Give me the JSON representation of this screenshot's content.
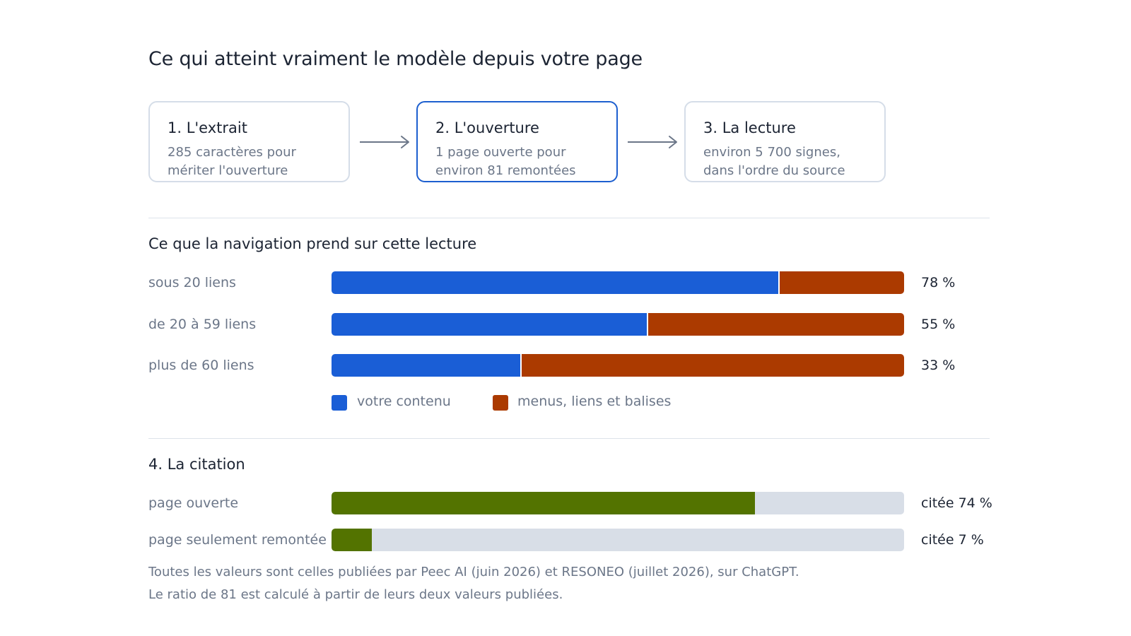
{
  "title": "Ce qui atteint vraiment le modèle depuis votre page",
  "steps": [
    {
      "title": "1. L'extrait",
      "line1": "285 caractères pour",
      "line2": "mériter l'ouverture"
    },
    {
      "title": "2. L'ouverture",
      "line1": "1 page ouverte pour",
      "line2": "environ 81 remontées",
      "active": true
    },
    {
      "title": "3. La lecture",
      "line1": "environ 5 700 signes,",
      "line2": "dans l'ordre du source"
    }
  ],
  "navigation": {
    "title": "Ce que la navigation prend sur cette lecture",
    "legend": {
      "content": "votre contenu",
      "nav": "menus, liens et balises"
    },
    "rows": [
      {
        "label": "sous 20 liens",
        "content_pct": 78,
        "value": "78 %"
      },
      {
        "label": "de 20 à 59 liens",
        "content_pct": 55,
        "value": "55 %"
      },
      {
        "label": "plus de 60 liens",
        "content_pct": 33,
        "value": "33 %"
      }
    ]
  },
  "citation": {
    "title": "4. La citation",
    "rows": [
      {
        "label": "page ouverte",
        "pct": 74,
        "value": "citée 74 %"
      },
      {
        "label": "page seulement remontée",
        "pct": 7,
        "value": "citée 7 %"
      }
    ]
  },
  "footnote": {
    "line1": "Toutes les valeurs sont celles publiées par Peec AI (juin 2026) et RESONEO (juillet 2026), sur ChatGPT.",
    "line2": "Le ratio de 81 est calculé à partir de leurs deux valeurs publiées."
  },
  "colors": {
    "content": "#1a5ed6",
    "navigation": "#ab3a00",
    "citation": "#537300",
    "track": "#d8dee7",
    "active_border": "#1d5fcf"
  },
  "chart_data": [
    {
      "type": "bar",
      "title": "Ce que la navigation prend sur cette lecture",
      "categories": [
        "sous 20 liens",
        "de 20 à 59 liens",
        "plus de 60 liens"
      ],
      "series": [
        {
          "name": "votre contenu",
          "values": [
            78,
            55,
            33
          ]
        },
        {
          "name": "menus, liens et balises",
          "values": [
            22,
            45,
            67
          ]
        }
      ],
      "stacked": true,
      "orientation": "horizontal",
      "xlim": [
        0,
        100
      ],
      "legend": "bottom"
    },
    {
      "type": "bar",
      "title": "4. La citation",
      "categories": [
        "page ouverte",
        "page seulement remontée"
      ],
      "values": [
        74,
        7
      ],
      "orientation": "horizontal",
      "xlim": [
        0,
        100
      ]
    }
  ]
}
